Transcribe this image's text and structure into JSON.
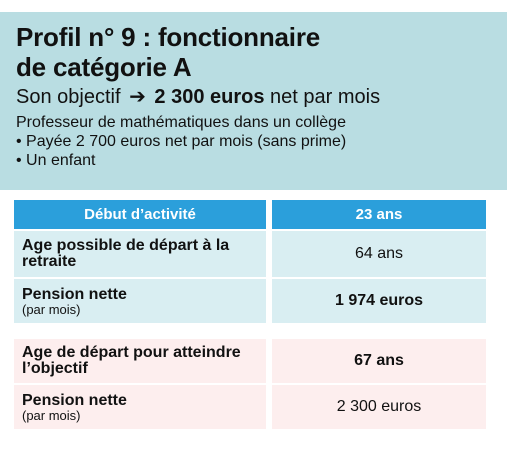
{
  "colors": {
    "header_bg": "#b9dde2",
    "table_head_bg": "#2b9fdb",
    "blue_row_bg": "#d9eef2",
    "pink_row_bg": "#fdeeee"
  },
  "header": {
    "title_line1": "Profil n° 9 : fonctionnaire",
    "title_line2": "de catégorie A",
    "objective_prefix": "Son objectif",
    "objective_arrow": "➔",
    "objective_amount": "2 300 euros",
    "objective_suffix": "net par mois",
    "detail_line1": "Professeur de mathématiques dans un collège",
    "detail_line2": "• Payée 2 700 euros net par mois (sans prime)",
    "detail_line3": "• Un enfant"
  },
  "table": {
    "head": {
      "label": "Début d’activité",
      "value": "23 ans"
    },
    "rows": [
      {
        "label": "Age possible de départ à la retraite",
        "sub": "",
        "value": "64 ans",
        "bold_value": false
      },
      {
        "label": "Pension nette",
        "sub": "(par mois)",
        "value": "1 974 euros",
        "bold_value": true
      },
      {
        "label": "Age de départ pour atteindre l’objectif",
        "sub": "",
        "value": "67 ans",
        "bold_value": true
      },
      {
        "label": "Pension nette",
        "sub": "(par mois)",
        "value": "2 300 euros",
        "bold_value": false
      }
    ]
  }
}
